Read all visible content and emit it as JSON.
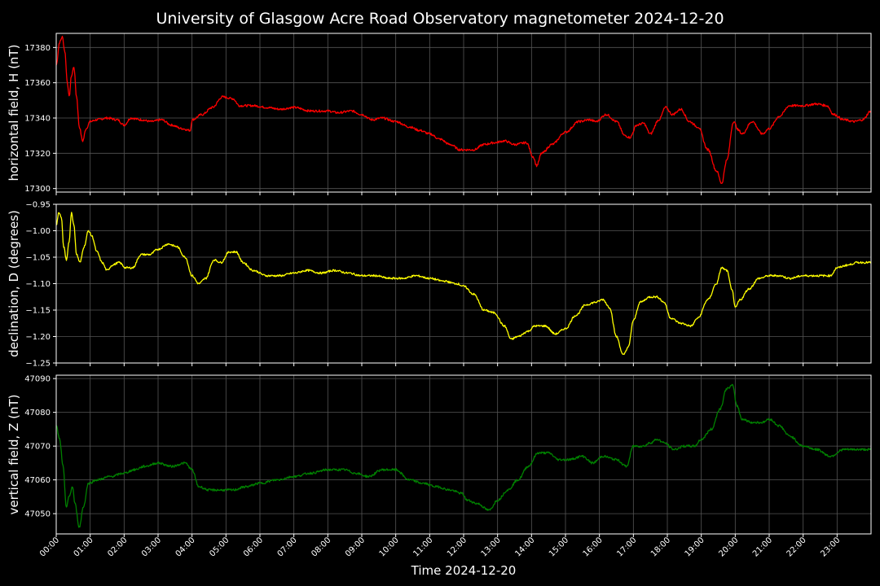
{
  "chart_data": {
    "type": "line",
    "title": "University of Glasgow Acre Road Observatory magnetometer 2024-12-20",
    "xlabel": "Time 2024-12-20",
    "x_ticks": [
      "00:00",
      "01:00",
      "02:00",
      "03:00",
      "04:00",
      "05:00",
      "06:00",
      "07:00",
      "08:00",
      "09:00",
      "10:00",
      "11:00",
      "12:00",
      "13:00",
      "14:00",
      "15:00",
      "16:00",
      "17:00",
      "18:00",
      "19:00",
      "20:00",
      "21:00",
      "22:00",
      "23:00"
    ],
    "xlim_hours": [
      0,
      24
    ],
    "grid": true,
    "panels": [
      {
        "ylabel": "horizontal field, H (nT)",
        "color": "#ff0000",
        "ylim": [
          17298,
          17388
        ],
        "y_ticks": [
          17300,
          17320,
          17340,
          17360,
          17380
        ],
        "points": [
          [
            0,
            17370
          ],
          [
            0.1,
            17383
          ],
          [
            0.18,
            17386
          ],
          [
            0.25,
            17378
          ],
          [
            0.33,
            17360
          ],
          [
            0.38,
            17352
          ],
          [
            0.45,
            17364
          ],
          [
            0.52,
            17369
          ],
          [
            0.6,
            17352
          ],
          [
            0.68,
            17335
          ],
          [
            0.78,
            17327
          ],
          [
            0.88,
            17334
          ],
          [
            1.0,
            17338
          ],
          [
            1.2,
            17339
          ],
          [
            1.5,
            17340
          ],
          [
            1.8,
            17339
          ],
          [
            2.0,
            17336
          ],
          [
            2.2,
            17340
          ],
          [
            2.5,
            17339
          ],
          [
            2.8,
            17338
          ],
          [
            3.1,
            17339
          ],
          [
            3.4,
            17336
          ],
          [
            3.7,
            17334
          ],
          [
            3.95,
            17333
          ],
          [
            4.0,
            17339
          ],
          [
            4.3,
            17342
          ],
          [
            4.6,
            17346
          ],
          [
            4.9,
            17352
          ],
          [
            5.2,
            17351
          ],
          [
            5.4,
            17347
          ],
          [
            5.8,
            17347
          ],
          [
            6.2,
            17346
          ],
          [
            6.6,
            17345
          ],
          [
            7.0,
            17346
          ],
          [
            7.5,
            17344
          ],
          [
            8.0,
            17344
          ],
          [
            8.3,
            17343
          ],
          [
            8.7,
            17344
          ],
          [
            9.0,
            17342
          ],
          [
            9.3,
            17339
          ],
          [
            9.6,
            17340
          ],
          [
            10.0,
            17338
          ],
          [
            10.4,
            17335
          ],
          [
            10.7,
            17333
          ],
          [
            11.0,
            17331
          ],
          [
            11.3,
            17328
          ],
          [
            11.6,
            17325
          ],
          [
            11.9,
            17322
          ],
          [
            12.3,
            17322
          ],
          [
            12.6,
            17325
          ],
          [
            12.9,
            17326
          ],
          [
            13.2,
            17327
          ],
          [
            13.5,
            17325
          ],
          [
            13.85,
            17326
          ],
          [
            14.05,
            17318
          ],
          [
            14.15,
            17313
          ],
          [
            14.3,
            17320
          ],
          [
            14.6,
            17325
          ],
          [
            15.0,
            17332
          ],
          [
            15.4,
            17338
          ],
          [
            15.7,
            17339
          ],
          [
            15.9,
            17338
          ],
          [
            16.2,
            17342
          ],
          [
            16.5,
            17338
          ],
          [
            16.75,
            17330
          ],
          [
            16.9,
            17329
          ],
          [
            17.1,
            17336
          ],
          [
            17.3,
            17337
          ],
          [
            17.5,
            17331
          ],
          [
            17.75,
            17339
          ],
          [
            17.95,
            17346
          ],
          [
            18.15,
            17342
          ],
          [
            18.4,
            17345
          ],
          [
            18.65,
            17338
          ],
          [
            18.9,
            17335
          ],
          [
            19.2,
            17322
          ],
          [
            19.45,
            17310
          ],
          [
            19.6,
            17303
          ],
          [
            19.75,
            17316
          ],
          [
            19.95,
            17338
          ],
          [
            20.1,
            17333
          ],
          [
            20.2,
            17331
          ],
          [
            20.5,
            17338
          ],
          [
            20.8,
            17331
          ],
          [
            21.0,
            17334
          ],
          [
            21.3,
            17341
          ],
          [
            21.6,
            17347
          ],
          [
            22.0,
            17347
          ],
          [
            22.4,
            17348
          ],
          [
            22.7,
            17347
          ],
          [
            22.9,
            17342
          ],
          [
            23.2,
            17339
          ],
          [
            23.5,
            17338
          ],
          [
            23.75,
            17339
          ],
          [
            24.0,
            17344
          ]
        ]
      },
      {
        "ylabel": "declination, D (degrees)",
        "color": "#ffff00",
        "ylim": [
          -1.25,
          -0.95
        ],
        "y_ticks": [
          -0.95,
          -1.0,
          -1.05,
          -1.1,
          -1.15,
          -1.2,
          -1.25
        ],
        "y_tick_labels": [
          "−0.95",
          "−1.00",
          "−1.05",
          "−1.10",
          "−1.15",
          "−1.20",
          "−1.25"
        ],
        "points": [
          [
            0,
            -0.99
          ],
          [
            0.08,
            -0.965
          ],
          [
            0.15,
            -0.975
          ],
          [
            0.22,
            -1.03
          ],
          [
            0.3,
            -1.055
          ],
          [
            0.38,
            -1.02
          ],
          [
            0.45,
            -0.965
          ],
          [
            0.52,
            -0.99
          ],
          [
            0.6,
            -1.045
          ],
          [
            0.7,
            -1.06
          ],
          [
            0.82,
            -1.03
          ],
          [
            0.95,
            -1.0
          ],
          [
            1.05,
            -1.01
          ],
          [
            1.2,
            -1.04
          ],
          [
            1.35,
            -1.06
          ],
          [
            1.5,
            -1.075
          ],
          [
            1.65,
            -1.065
          ],
          [
            1.85,
            -1.06
          ],
          [
            2.05,
            -1.07
          ],
          [
            2.25,
            -1.07
          ],
          [
            2.5,
            -1.045
          ],
          [
            2.75,
            -1.045
          ],
          [
            3.0,
            -1.035
          ],
          [
            3.3,
            -1.025
          ],
          [
            3.55,
            -1.03
          ],
          [
            3.8,
            -1.05
          ],
          [
            4.0,
            -1.085
          ],
          [
            4.2,
            -1.1
          ],
          [
            4.4,
            -1.09
          ],
          [
            4.65,
            -1.055
          ],
          [
            4.85,
            -1.06
          ],
          [
            5.1,
            -1.04
          ],
          [
            5.3,
            -1.04
          ],
          [
            5.5,
            -1.06
          ],
          [
            5.8,
            -1.075
          ],
          [
            6.2,
            -1.085
          ],
          [
            6.6,
            -1.085
          ],
          [
            7.0,
            -1.08
          ],
          [
            7.4,
            -1.075
          ],
          [
            7.8,
            -1.08
          ],
          [
            8.2,
            -1.075
          ],
          [
            8.6,
            -1.08
          ],
          [
            9.0,
            -1.085
          ],
          [
            9.4,
            -1.085
          ],
          [
            9.8,
            -1.09
          ],
          [
            10.2,
            -1.09
          ],
          [
            10.6,
            -1.085
          ],
          [
            11.0,
            -1.09
          ],
          [
            11.4,
            -1.095
          ],
          [
            11.8,
            -1.1
          ],
          [
            12.0,
            -1.105
          ],
          [
            12.3,
            -1.12
          ],
          [
            12.6,
            -1.15
          ],
          [
            12.9,
            -1.155
          ],
          [
            13.2,
            -1.18
          ],
          [
            13.4,
            -1.205
          ],
          [
            13.6,
            -1.2
          ],
          [
            13.9,
            -1.19
          ],
          [
            14.1,
            -1.18
          ],
          [
            14.4,
            -1.18
          ],
          [
            14.7,
            -1.195
          ],
          [
            15.0,
            -1.185
          ],
          [
            15.3,
            -1.16
          ],
          [
            15.6,
            -1.14
          ],
          [
            15.9,
            -1.135
          ],
          [
            16.1,
            -1.13
          ],
          [
            16.3,
            -1.145
          ],
          [
            16.5,
            -1.2
          ],
          [
            16.7,
            -1.235
          ],
          [
            16.85,
            -1.22
          ],
          [
            17.0,
            -1.17
          ],
          [
            17.2,
            -1.135
          ],
          [
            17.5,
            -1.125
          ],
          [
            17.7,
            -1.125
          ],
          [
            17.9,
            -1.135
          ],
          [
            18.1,
            -1.165
          ],
          [
            18.4,
            -1.175
          ],
          [
            18.7,
            -1.18
          ],
          [
            18.9,
            -1.165
          ],
          [
            19.2,
            -1.13
          ],
          [
            19.45,
            -1.1
          ],
          [
            19.6,
            -1.07
          ],
          [
            19.75,
            -1.075
          ],
          [
            19.9,
            -1.11
          ],
          [
            20.0,
            -1.145
          ],
          [
            20.15,
            -1.13
          ],
          [
            20.4,
            -1.11
          ],
          [
            20.7,
            -1.09
          ],
          [
            21.0,
            -1.085
          ],
          [
            21.3,
            -1.085
          ],
          [
            21.6,
            -1.09
          ],
          [
            22.0,
            -1.085
          ],
          [
            22.4,
            -1.085
          ],
          [
            22.8,
            -1.085
          ],
          [
            23.0,
            -1.07
          ],
          [
            23.3,
            -1.065
          ],
          [
            23.6,
            -1.06
          ],
          [
            24.0,
            -1.06
          ]
        ]
      },
      {
        "ylabel": "vertical field, Z (nT)",
        "color": "#008000",
        "ylim": [
          47044,
          47091
        ],
        "y_ticks": [
          47050,
          47060,
          47070,
          47080,
          47090
        ],
        "points": [
          [
            0,
            47076
          ],
          [
            0.1,
            47072
          ],
          [
            0.2,
            47064
          ],
          [
            0.3,
            47052
          ],
          [
            0.38,
            47055
          ],
          [
            0.48,
            47058
          ],
          [
            0.55,
            47053
          ],
          [
            0.68,
            47046
          ],
          [
            0.8,
            47052
          ],
          [
            0.95,
            47059
          ],
          [
            1.2,
            47060
          ],
          [
            1.6,
            47061
          ],
          [
            2.0,
            47062
          ],
          [
            2.3,
            47063
          ],
          [
            2.6,
            47064
          ],
          [
            3.0,
            47065
          ],
          [
            3.4,
            47064
          ],
          [
            3.8,
            47065
          ],
          [
            4.0,
            47063
          ],
          [
            4.2,
            47058
          ],
          [
            4.5,
            47057
          ],
          [
            4.8,
            47057
          ],
          [
            5.2,
            47057
          ],
          [
            5.6,
            47058
          ],
          [
            6.0,
            47059
          ],
          [
            6.5,
            47060
          ],
          [
            7.0,
            47061
          ],
          [
            7.5,
            47062
          ],
          [
            8.0,
            47063
          ],
          [
            8.5,
            47063
          ],
          [
            8.8,
            47062
          ],
          [
            9.2,
            47061
          ],
          [
            9.6,
            47063
          ],
          [
            10.0,
            47063
          ],
          [
            10.4,
            47060
          ],
          [
            10.8,
            47059
          ],
          [
            11.2,
            47058
          ],
          [
            11.6,
            47057
          ],
          [
            11.95,
            47056
          ],
          [
            12.1,
            47054
          ],
          [
            12.4,
            47053
          ],
          [
            12.75,
            47051
          ],
          [
            13.0,
            47054
          ],
          [
            13.3,
            47057
          ],
          [
            13.6,
            47060
          ],
          [
            13.9,
            47064
          ],
          [
            14.2,
            47068
          ],
          [
            14.5,
            47068
          ],
          [
            14.8,
            47066
          ],
          [
            15.1,
            47066
          ],
          [
            15.5,
            47067
          ],
          [
            15.8,
            47065
          ],
          [
            16.1,
            47067
          ],
          [
            16.5,
            47066
          ],
          [
            16.8,
            47064
          ],
          [
            17.0,
            47070
          ],
          [
            17.3,
            47070
          ],
          [
            17.5,
            47071
          ],
          [
            17.7,
            47072
          ],
          [
            17.9,
            47071
          ],
          [
            18.2,
            47069
          ],
          [
            18.5,
            47070
          ],
          [
            18.8,
            47070
          ],
          [
            19.0,
            47072
          ],
          [
            19.3,
            47075
          ],
          [
            19.55,
            47081
          ],
          [
            19.75,
            47087
          ],
          [
            19.92,
            47088
          ],
          [
            20.05,
            47082
          ],
          [
            20.2,
            47078
          ],
          [
            20.5,
            47077
          ],
          [
            20.8,
            47077
          ],
          [
            21.0,
            47078
          ],
          [
            21.3,
            47076
          ],
          [
            21.6,
            47073
          ],
          [
            22.0,
            47070
          ],
          [
            22.4,
            47069
          ],
          [
            22.8,
            47067
          ],
          [
            23.2,
            47069
          ],
          [
            23.6,
            47069
          ],
          [
            24.0,
            47069
          ]
        ]
      }
    ]
  }
}
